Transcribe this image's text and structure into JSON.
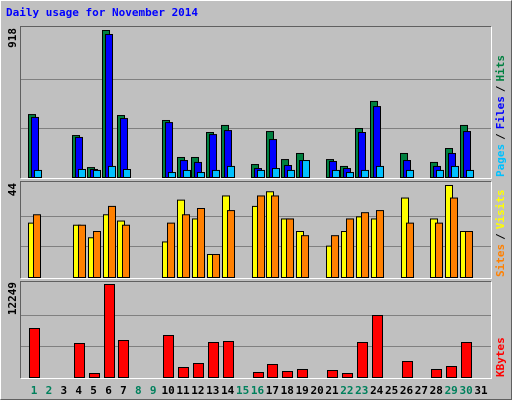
{
  "chart_data": [
    {
      "type": "bar",
      "title": "Daily usage for November 2014",
      "title_color": "#0000ff",
      "ylim": [
        0,
        918
      ],
      "yticks": [
        918
      ],
      "grid_divisions": 3,
      "legend_separator": "/",
      "series": [
        {
          "name": "Pages",
          "color": "#00c0ff",
          "values": [
            44,
            0,
            0,
            50,
            44,
            69,
            50,
            0,
            0,
            31,
            44,
            31,
            44,
            69,
            0,
            44,
            56,
            44,
            106,
            0,
            44,
            31,
            44,
            69,
            0,
            44,
            0,
            44,
            69,
            44,
            0
          ]
        },
        {
          "name": "Files",
          "color": "#0000ff",
          "values": [
            375,
            0,
            0,
            250,
            50,
            893,
            368,
            0,
            0,
            343,
            106,
            94,
            268,
            293,
            0,
            56,
            237,
            75,
            106,
            0,
            100,
            56,
            281,
            443,
            0,
            106,
            0,
            69,
            150,
            287,
            0
          ]
        },
        {
          "name": "Hits",
          "color": "#008040",
          "values": [
            393,
            0,
            0,
            262,
            62,
            918,
            387,
            0,
            0,
            356,
            125,
            125,
            281,
            325,
            0,
            81,
            287,
            112,
            150,
            0,
            112,
            69,
            306,
            475,
            0,
            150,
            0,
            94,
            181,
            325,
            0
          ]
        }
      ]
    },
    {
      "type": "bar",
      "ylim": [
        0,
        44
      ],
      "yticks": [
        44
      ],
      "grid_divisions": 3,
      "legend_separator": "/",
      "series": [
        {
          "name": "Sites",
          "color": "#ff8000",
          "values": [
            30,
            0,
            0,
            25,
            22,
            34,
            25,
            0,
            0,
            26,
            30,
            33,
            11,
            32,
            0,
            39,
            39,
            28,
            20,
            0,
            20,
            28,
            31,
            32,
            0,
            26,
            0,
            26,
            38,
            22,
            0
          ]
        },
        {
          "name": "Visits",
          "color": "#ffff00",
          "values": [
            26,
            0,
            0,
            25,
            19,
            30,
            27,
            0,
            0,
            17,
            37,
            28,
            11,
            39,
            0,
            34,
            41,
            28,
            22,
            0,
            15,
            22,
            29,
            28,
            0,
            38,
            0,
            28,
            44,
            22,
            0
          ]
        }
      ]
    },
    {
      "type": "bar",
      "ylim": [
        0,
        12249
      ],
      "yticks": [
        12249
      ],
      "grid_divisions": 3,
      "series": [
        {
          "name": "KBytes",
          "color": "#ff0000",
          "values": [
            6454,
            0,
            0,
            4478,
            527,
            12249,
            4873,
            0,
            0,
            5532,
            1317,
            1844,
            4610,
            4742,
            0,
            659,
            1712,
            790,
            1054,
            0,
            922,
            527,
            4610,
            8166,
            0,
            2107,
            0,
            1054,
            1449,
            4610,
            0
          ]
        }
      ],
      "categories": [
        "1",
        "2",
        "3",
        "4",
        "5",
        "6",
        "7",
        "8",
        "9",
        "10",
        "11",
        "12",
        "13",
        "14",
        "15",
        "16",
        "17",
        "18",
        "19",
        "20",
        "21",
        "22",
        "23",
        "24",
        "25",
        "26",
        "27",
        "28",
        "29",
        "30",
        "31"
      ],
      "category_colors": [
        "#00805c",
        "#00805c",
        "#000000",
        "#000000",
        "#000000",
        "#000000",
        "#000000",
        "#00805c",
        "#00805c",
        "#000000",
        "#000000",
        "#000000",
        "#000000",
        "#000000",
        "#00805c",
        "#00805c",
        "#000000",
        "#000000",
        "#000000",
        "#000000",
        "#000000",
        "#00805c",
        "#00805c",
        "#000000",
        "#000000",
        "#000000",
        "#000000",
        "#000000",
        "#00805c",
        "#00805c",
        "#000000"
      ]
    }
  ]
}
